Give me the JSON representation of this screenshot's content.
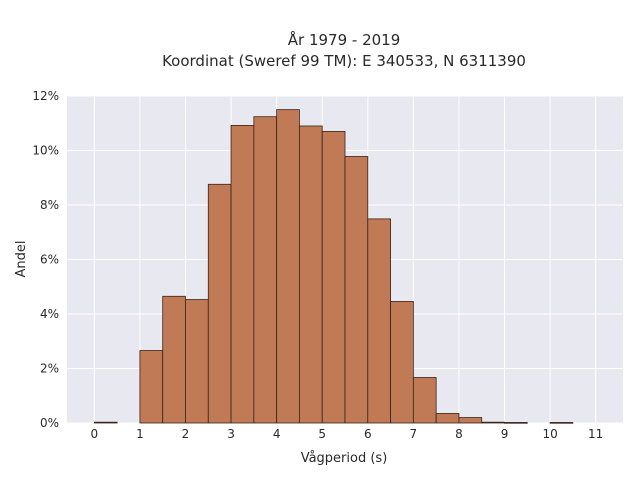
{
  "chart_data": {
    "type": "bar",
    "title_lines": [
      "År 1979 - 2019",
      "Koordinat (Sweref 99 TM): E 340533, N 6311390"
    ],
    "xlabel": "Vågperiod (s)",
    "ylabel": "Andel",
    "x_ticks": [
      0,
      1,
      2,
      3,
      4,
      5,
      6,
      7,
      8,
      9,
      10,
      11
    ],
    "x_tick_labels": [
      "0",
      "1",
      "2",
      "3",
      "4",
      "5",
      "6",
      "7",
      "8",
      "9",
      "10",
      "11"
    ],
    "y_ticks": [
      0,
      2,
      4,
      6,
      8,
      10,
      12
    ],
    "y_tick_labels": [
      "0%",
      "2%",
      "4%",
      "6%",
      "8%",
      "10%",
      "12%"
    ],
    "xlim": [
      -0.6,
      11.6
    ],
    "ylim": [
      0,
      12
    ],
    "bin_width": 0.5,
    "bins": [
      {
        "start": 0.0,
        "value": 0.03
      },
      {
        "start": 1.0,
        "value": 2.66
      },
      {
        "start": 1.5,
        "value": 4.65
      },
      {
        "start": 2.0,
        "value": 4.53
      },
      {
        "start": 2.5,
        "value": 8.76
      },
      {
        "start": 3.0,
        "value": 10.92
      },
      {
        "start": 3.5,
        "value": 11.24
      },
      {
        "start": 4.0,
        "value": 11.5
      },
      {
        "start": 4.5,
        "value": 10.9
      },
      {
        "start": 5.0,
        "value": 10.7
      },
      {
        "start": 5.5,
        "value": 9.78
      },
      {
        "start": 6.0,
        "value": 7.49
      },
      {
        "start": 6.5,
        "value": 4.46
      },
      {
        "start": 7.0,
        "value": 1.67
      },
      {
        "start": 7.5,
        "value": 0.35
      },
      {
        "start": 8.0,
        "value": 0.2
      },
      {
        "start": 8.5,
        "value": 0.03
      },
      {
        "start": 9.0,
        "value": 0.02
      },
      {
        "start": 10.0,
        "value": 0.02
      }
    ],
    "bar_color": "#c07a55",
    "bar_edge_color": "#3a2418",
    "plot_background": "#e8e8f0",
    "grid": true,
    "grid_color": "#ffffff"
  }
}
